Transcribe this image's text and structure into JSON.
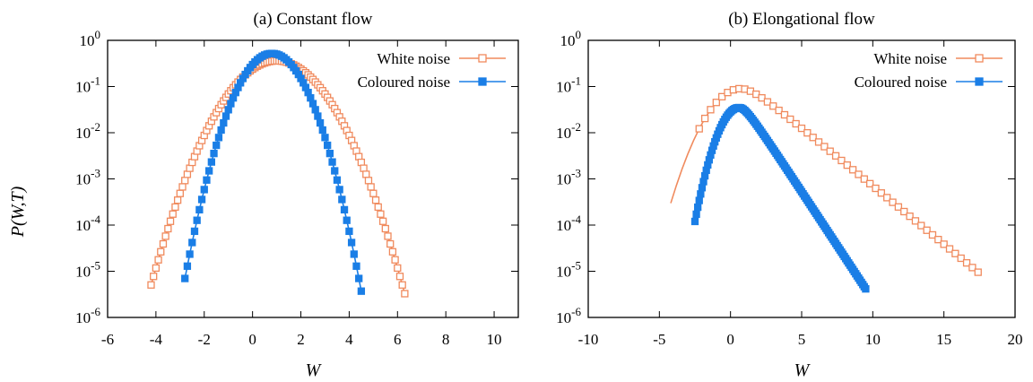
{
  "ylabel": "P(W,T)",
  "chart_data": [
    {
      "type": "line",
      "panel": "a",
      "title": "(a) Constant flow",
      "xlabel": "W",
      "ylabel": "P(W,T)",
      "xlim": [
        -6,
        11
      ],
      "ylim": [
        1e-06,
        1
      ],
      "yscale": "log",
      "xticks": [
        -6,
        -4,
        -2,
        0,
        2,
        4,
        6,
        8,
        10
      ],
      "yticks": [
        {
          "value": 1,
          "base": "10",
          "exp": "0"
        },
        {
          "value": 0.1,
          "base": "10",
          "exp": "-1"
        },
        {
          "value": 0.01,
          "base": "10",
          "exp": "-2"
        },
        {
          "value": 0.001,
          "base": "10",
          "exp": "-3"
        },
        {
          "value": 0.0001,
          "base": "10",
          "exp": "-4"
        },
        {
          "value": 1e-05,
          "base": "10",
          "exp": "-5"
        },
        {
          "value": 1e-06,
          "base": "10",
          "exp": "-6"
        }
      ],
      "legend_position": "top-right",
      "series": [
        {
          "name": "White noise",
          "color": "#f08a5d",
          "marker": "open-square",
          "shape": "gaussian",
          "mean": 1.0,
          "sigma": 1.1,
          "peak": 0.36,
          "x_range": [
            -4.2,
            6.3
          ],
          "step": 0.1
        },
        {
          "name": "Coloured noise",
          "color": "#1a7ee6",
          "marker": "filled-square",
          "shape": "gaussian",
          "mean": 0.8,
          "sigma": 0.76,
          "peak": 0.52,
          "x_range": [
            -2.8,
            4.5
          ],
          "step": 0.1
        }
      ]
    },
    {
      "type": "line",
      "panel": "b",
      "title": "(b) Elongational flow",
      "xlabel": "W",
      "ylabel": "",
      "xlim": [
        -10,
        20
      ],
      "ylim": [
        1e-06,
        1
      ],
      "yscale": "log",
      "xticks": [
        -10,
        -5,
        0,
        5,
        10,
        15,
        20
      ],
      "yticks": [
        {
          "value": 1,
          "base": "10",
          "exp": "0"
        },
        {
          "value": 0.1,
          "base": "10",
          "exp": "-1"
        },
        {
          "value": 0.01,
          "base": "10",
          "exp": "-2"
        },
        {
          "value": 0.001,
          "base": "10",
          "exp": "-3"
        },
        {
          "value": 0.0001,
          "base": "10",
          "exp": "-4"
        },
        {
          "value": 1e-05,
          "base": "10",
          "exp": "-5"
        },
        {
          "value": 1e-06,
          "base": "10",
          "exp": "-6"
        }
      ],
      "legend_position": "top-right",
      "series": [
        {
          "name": "White noise",
          "color": "#f08a5d",
          "marker": "open-square",
          "shape": "skewed",
          "mode": 0.7,
          "peak": 0.09,
          "left_width": 1.45,
          "right_decay": 3.95,
          "x_range": [
            -4.2,
            17.5
          ],
          "step": 0.4,
          "marker_from": -2.6
        },
        {
          "name": "Coloured noise",
          "color": "#1a7ee6",
          "marker": "filled-square",
          "shape": "skewed",
          "mode": 0.6,
          "peak": 0.035,
          "left_width": 0.92,
          "right_decay": 2.13,
          "x_range": [
            -2.5,
            9.5
          ],
          "step": 0.1
        }
      ]
    }
  ]
}
